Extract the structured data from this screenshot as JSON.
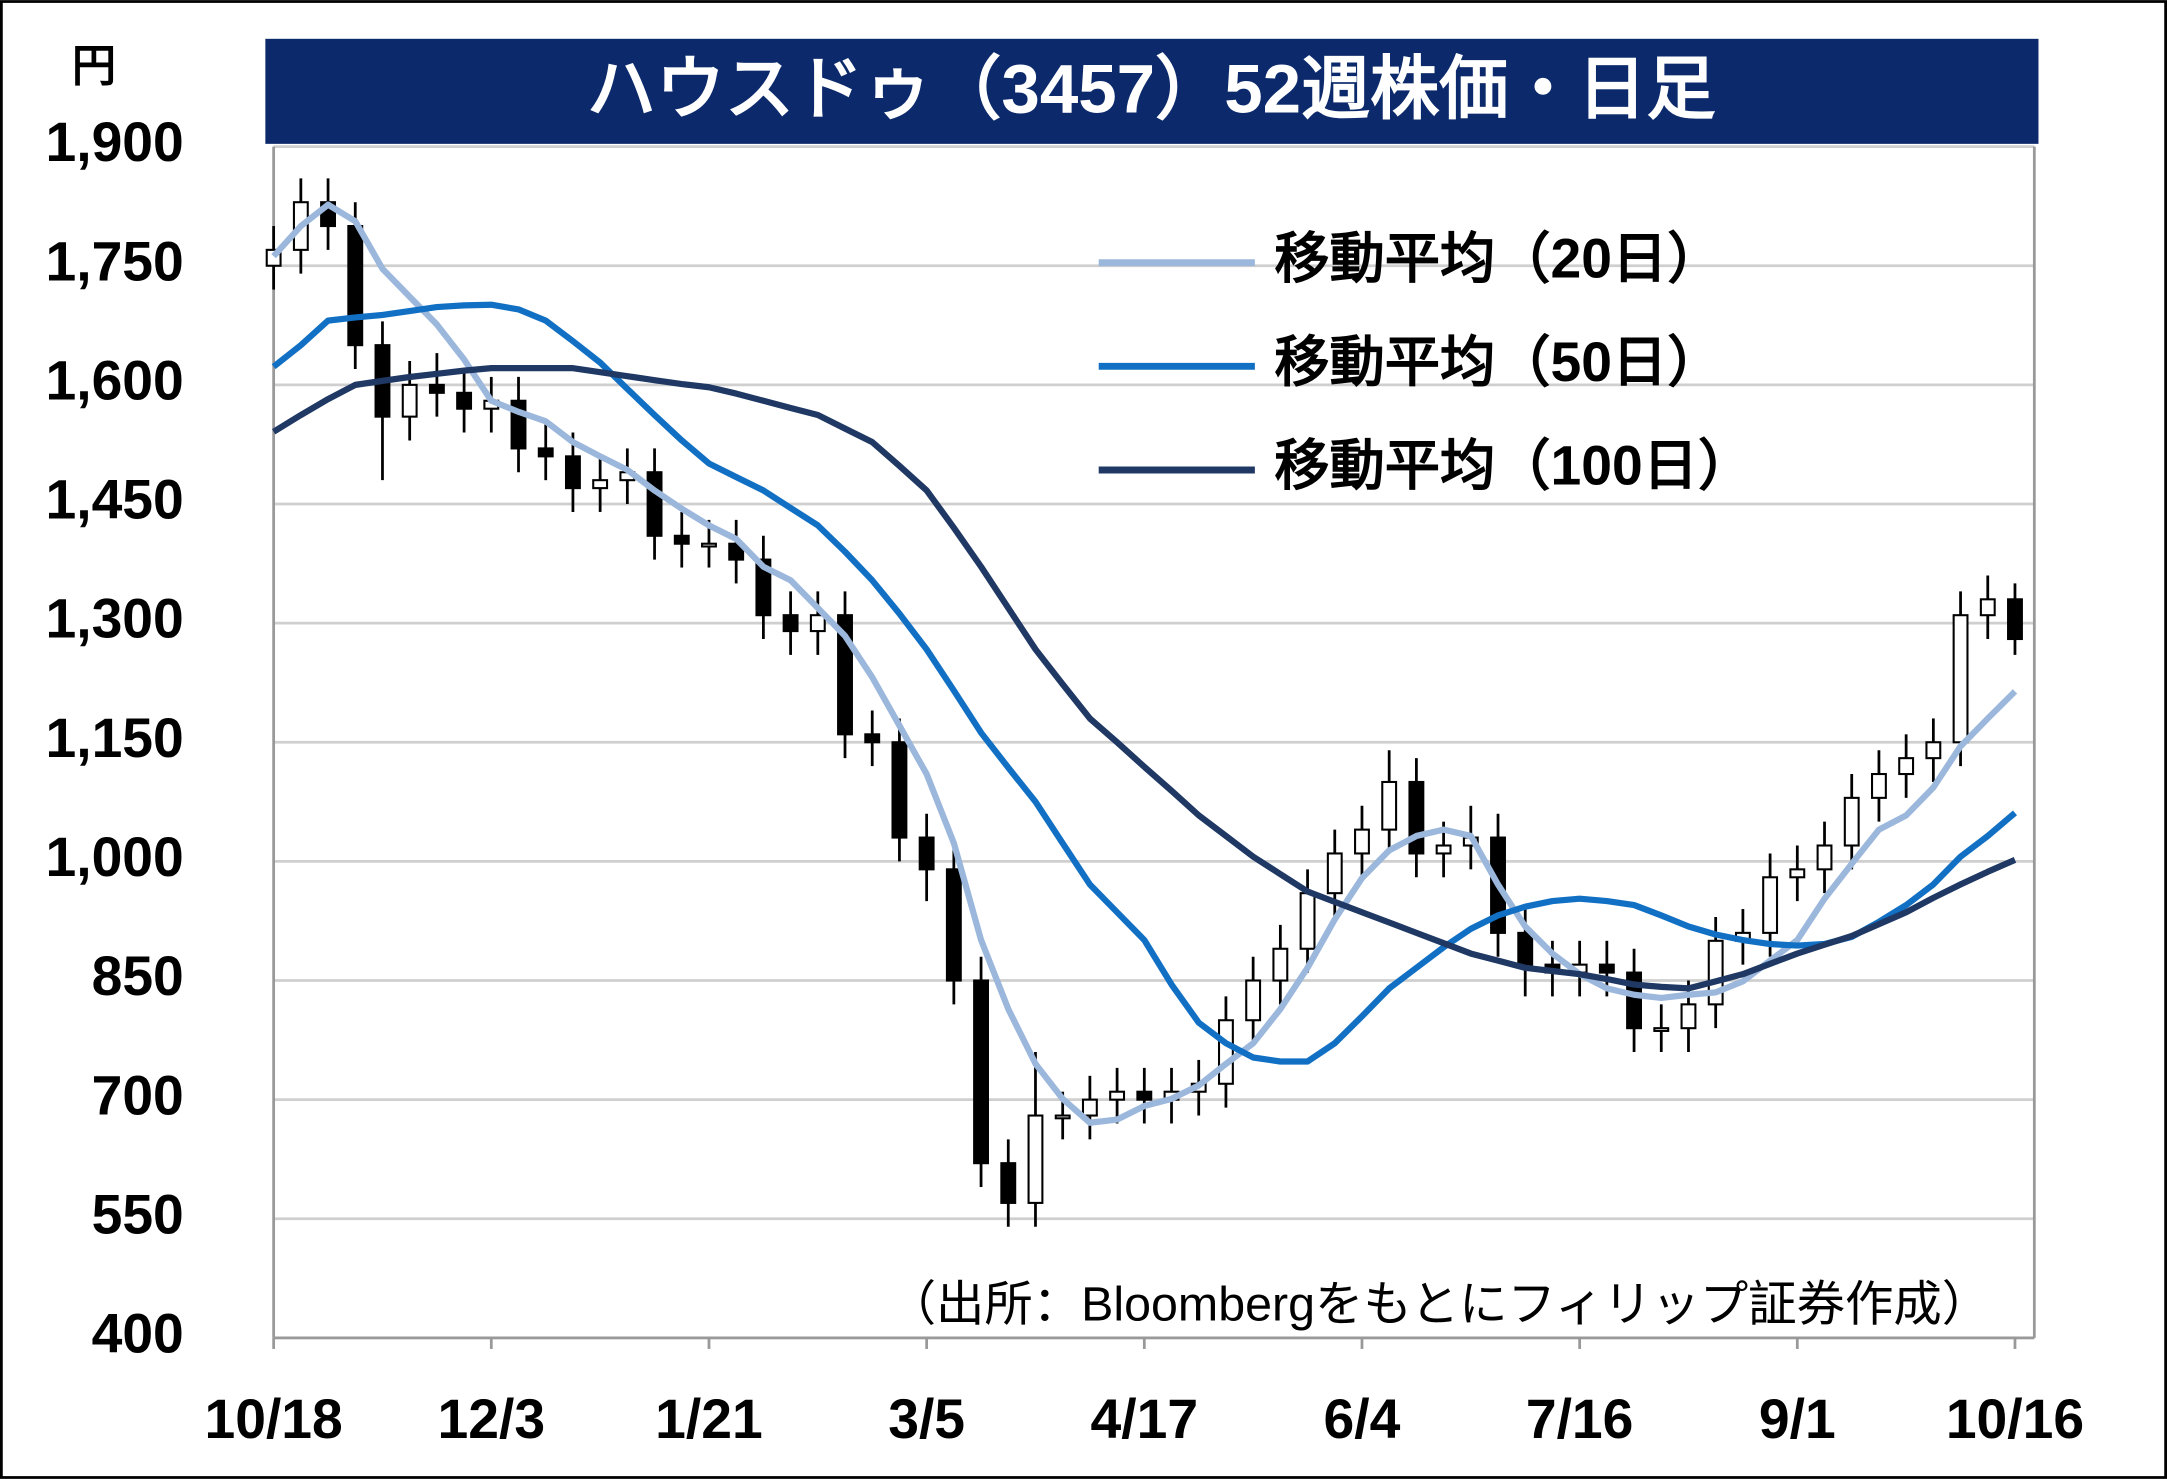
{
  "chart_data": {
    "type": "candlestick",
    "title": "ハウスドゥ（3457）52週株価・日足",
    "y_label": "円",
    "annotation": "（出所：Bloombergをもとにフィリップ証券作成）",
    "ylim": [
      400,
      1900
    ],
    "yticks": [
      {
        "value": 1900,
        "label": "1,900"
      },
      {
        "value": 1750,
        "label": "1,750"
      },
      {
        "value": 1600,
        "label": "1,600"
      },
      {
        "value": 1450,
        "label": "1,450"
      },
      {
        "value": 1300,
        "label": "1,300"
      },
      {
        "value": 1150,
        "label": "1,150"
      },
      {
        "value": 1000,
        "label": "1,000"
      },
      850,
      700,
      550,
      400
    ],
    "grid": true,
    "categories": [
      "10/18",
      null,
      null,
      null,
      null,
      null,
      null,
      null,
      "12/3",
      null,
      null,
      null,
      null,
      null,
      null,
      null,
      "1/21",
      null,
      null,
      null,
      null,
      null,
      null,
      null,
      "3/5",
      null,
      null,
      null,
      null,
      null,
      null,
      null,
      "4/17",
      null,
      null,
      null,
      null,
      null,
      null,
      null,
      "6/4",
      null,
      null,
      null,
      null,
      null,
      null,
      null,
      "7/16",
      null,
      null,
      null,
      null,
      null,
      null,
      null,
      "9/1",
      null,
      null,
      null,
      null,
      null,
      null,
      null,
      "10/16"
    ],
    "candles": {
      "open": [
        1750,
        1770,
        1830,
        1800,
        1650,
        1560,
        1600,
        1590,
        1570,
        1580,
        1520,
        1510,
        1470,
        1480,
        1490,
        1410,
        1400,
        1400,
        1380,
        1310,
        1290,
        1310,
        1160,
        1150,
        1030,
        990,
        850,
        620,
        570,
        680,
        680,
        700,
        710,
        700,
        710,
        720,
        800,
        850,
        890,
        960,
        1010,
        1040,
        1100,
        1010,
        1020,
        1030,
        910,
        870,
        860,
        870,
        860,
        790,
        790,
        820,
        900,
        910,
        980,
        990,
        1020,
        1080,
        1110,
        1130,
        1150,
        1310,
        1330
      ],
      "high": [
        1800,
        1860,
        1860,
        1830,
        1680,
        1630,
        1640,
        1620,
        1610,
        1610,
        1550,
        1540,
        1510,
        1520,
        1520,
        1440,
        1430,
        1430,
        1410,
        1340,
        1340,
        1340,
        1190,
        1180,
        1060,
        1020,
        880,
        650,
        760,
        710,
        730,
        740,
        740,
        740,
        750,
        830,
        880,
        920,
        990,
        1040,
        1070,
        1140,
        1130,
        1050,
        1070,
        1060,
        940,
        900,
        900,
        900,
        890,
        820,
        850,
        930,
        940,
        1010,
        1020,
        1050,
        1110,
        1140,
        1160,
        1180,
        1340,
        1360,
        1350
      ],
      "low": [
        1720,
        1740,
        1770,
        1620,
        1480,
        1530,
        1560,
        1540,
        1540,
        1490,
        1480,
        1440,
        1440,
        1450,
        1380,
        1370,
        1370,
        1350,
        1280,
        1260,
        1260,
        1130,
        1120,
        1000,
        950,
        820,
        590,
        540,
        540,
        650,
        650,
        670,
        670,
        670,
        680,
        690,
        770,
        820,
        860,
        930,
        980,
        1010,
        980,
        980,
        990,
        880,
        830,
        830,
        830,
        830,
        760,
        760,
        760,
        790,
        870,
        880,
        950,
        960,
        990,
        1050,
        1080,
        1100,
        1120,
        1280,
        1260
      ],
      "close": [
        1770,
        1830,
        1800,
        1650,
        1560,
        1600,
        1590,
        1570,
        1580,
        1520,
        1510,
        1470,
        1480,
        1490,
        1410,
        1400,
        1400,
        1380,
        1310,
        1290,
        1310,
        1160,
        1150,
        1030,
        990,
        850,
        620,
        570,
        680,
        680,
        700,
        710,
        700,
        710,
        720,
        800,
        850,
        890,
        960,
        1010,
        1040,
        1100,
        1010,
        1020,
        1030,
        910,
        870,
        860,
        870,
        860,
        790,
        790,
        820,
        900,
        910,
        980,
        990,
        1020,
        1080,
        1110,
        1130,
        1150,
        1310,
        1330,
        1280
      ]
    },
    "candle_colors": {
      "up": "#ffffff",
      "down": "#000000"
    },
    "series": [
      {
        "name": "移動平均（20日）",
        "color": "#9bb7dc",
        "values": [
          1762,
          1800,
          1827,
          1806,
          1746,
          1711,
          1676,
          1632,
          1580,
          1566,
          1554,
          1528,
          1510,
          1493,
          1467,
          1444,
          1423,
          1406,
          1371,
          1354,
          1319,
          1284,
          1232,
          1171,
          1110,
          1023,
          901,
          814,
          745,
          701,
          671,
          675,
          692,
          701,
          718,
          745,
          771,
          814,
          866,
          927,
          979,
          1014,
          1032,
          1040,
          1032,
          971,
          918,
          884,
          858,
          840,
          832,
          828,
          832,
          835,
          849,
          875,
          901,
          953,
          997,
          1040,
          1058,
          1093,
          1145,
          1180,
          1214
        ]
      },
      {
        "name": "移動平均（50日）",
        "color": "#1170c4",
        "values": [
          1623,
          1650,
          1681,
          1685,
          1688,
          1693,
          1698,
          1700,
          1701,
          1695,
          1681,
          1655,
          1628,
          1595,
          1562,
          1530,
          1501,
          1484,
          1467,
          1445,
          1423,
          1390,
          1354,
          1312,
          1267,
          1215,
          1162,
          1118,
          1075,
          1023,
          971,
          936,
          901,
          845,
          797,
          771,
          753,
          748,
          748,
          771,
          805,
          840,
          866,
          892,
          915,
          932,
          943,
          950,
          953,
          950,
          945,
          932,
          918,
          908,
          901,
          896,
          894,
          896,
          905,
          924,
          945,
          971,
          1006,
          1032,
          1061
        ]
      },
      {
        "name": "移動平均（100日）",
        "color": "#1f3864",
        "values": [
          1541,
          1562,
          1582,
          1600,
          1605,
          1610,
          1614,
          1618,
          1621,
          1621,
          1621,
          1621,
          1616,
          1611,
          1606,
          1601,
          1597,
          1589,
          1580,
          1571,
          1562,
          1545,
          1528,
          1498,
          1467,
          1420,
          1371,
          1319,
          1267,
          1223,
          1180,
          1150,
          1119,
          1089,
          1058,
          1032,
          1006,
          984,
          962,
          949,
          936,
          923,
          910,
          897,
          884,
          875,
          866,
          862,
          858,
          852,
          845,
          842,
          840,
          849,
          858,
          871,
          884,
          895,
          906,
          921,
          936,
          954,
          971,
          987,
          1002
        ]
      }
    ]
  }
}
